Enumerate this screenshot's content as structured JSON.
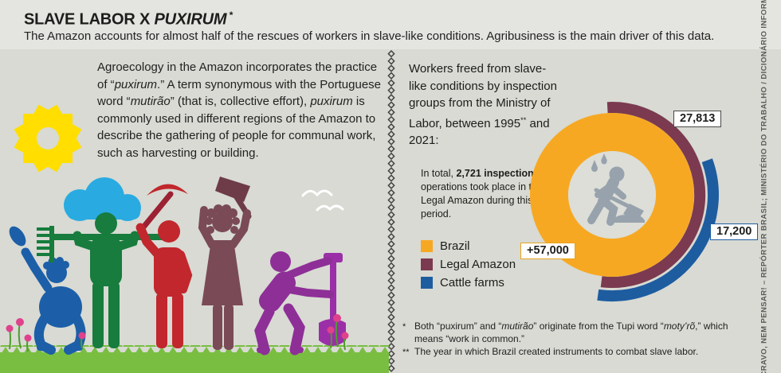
{
  "header": {
    "title_parts": [
      {
        "text": "SLAVE LABOR X "
      },
      {
        "text": "PUXIRUM",
        "italic": true
      },
      {
        "text": " *",
        "sup": true
      }
    ],
    "subtitle": "The Amazon accounts for almost half of the rescues of workers in slave-like conditions. Agribusiness is the main driver of this data."
  },
  "left": {
    "paragraph_parts": [
      {
        "text": "Agroecology in the Amazon incorporates the practice of “"
      },
      {
        "text": "puxirum",
        "italic": true
      },
      {
        "text": ".” A term synonymous with the Portuguese word “"
      },
      {
        "text": "mutirão",
        "italic": true
      },
      {
        "text": "” (that is, collective effort), "
      },
      {
        "text": "puxirum",
        "italic": true
      },
      {
        "text": " is commonly used in different regions of the Amazon to describe the gathering of people for communal work, such as harvesting or building."
      }
    ],
    "illustration_icons": [
      "sun-icon",
      "cloud-icon",
      "birds-icon",
      "crouching-worker-icon",
      "rake-worker-icon",
      "pickaxe-worker-icon",
      "axe-worker-icon",
      "shovel-worker-icon",
      "grass",
      "flowers"
    ]
  },
  "right": {
    "intro_parts": [
      {
        "text": "Workers freed from slave-like conditions by inspection groups from the Ministry of Labor, between 1995"
      },
      {
        "text": "**",
        "sup": true
      },
      {
        "text": " and 2021:"
      }
    ],
    "note_parts": [
      {
        "text": "In total, "
      },
      {
        "text": "2,721 inspection",
        "bold": true
      },
      {
        "text": " operations took place in the Legal Amazon during this period."
      }
    ],
    "legend": [
      {
        "label": "Brazil",
        "color": "#F7A823"
      },
      {
        "label": "Legal Amazon",
        "color": "#7B3A50"
      },
      {
        "label": "Cattle farms",
        "color": "#1E5CA0"
      }
    ]
  },
  "chart_data": {
    "type": "pie",
    "variant": "concentric donut + outer arcs, worker-digging icon in center",
    "title": "Workers freed from slave-like conditions by inspection groups from the Ministry of Labor, between 1995 and 2021",
    "series": [
      {
        "name": "Brazil",
        "value": 57000,
        "label": "+57,000",
        "color": "#F7A823"
      },
      {
        "name": "Legal Amazon",
        "value": 27813,
        "label": "27,813",
        "color": "#7B3A50"
      },
      {
        "name": "Cattle farms",
        "value": 17200,
        "label": "17,200",
        "color": "#1E5CA0"
      }
    ],
    "annotation": "In total, 2,721 inspection operations took place in the Legal Amazon during this period.",
    "legend_position": "left",
    "center_icon": "digging-worker-icon"
  },
  "footnotes": [
    {
      "marker": "*",
      "parts": [
        {
          "text": "Both “puxirum” and “"
        },
        {
          "text": "mutirão",
          "italic": true
        },
        {
          "text": "” originate from the Tupi word “"
        },
        {
          "text": "moty’rõ",
          "italic": true
        },
        {
          "text": ",” which means “work in common.”"
        }
      ]
    },
    {
      "marker": "**",
      "parts": [
        {
          "text": "The year in which Brazil created instruments to combat slave labor."
        }
      ]
    }
  ],
  "credit": "ESCRAVO, NEM PENSAR! – REPÓRTER BRASIL; MINISTÉRIO DO TRABALHO / DICIONÁRIO INFORMAL",
  "colors": {
    "background": "#d8dad3",
    "header_band": "#e4e5e0",
    "sun_yellow": "#FFDE00",
    "cloud_blue": "#29ABE2",
    "grass_green": "#79BE41",
    "flower_pink": "#E0418C",
    "worker_gray": "#98A2AD",
    "chain_divider": "#3c3c3c"
  }
}
